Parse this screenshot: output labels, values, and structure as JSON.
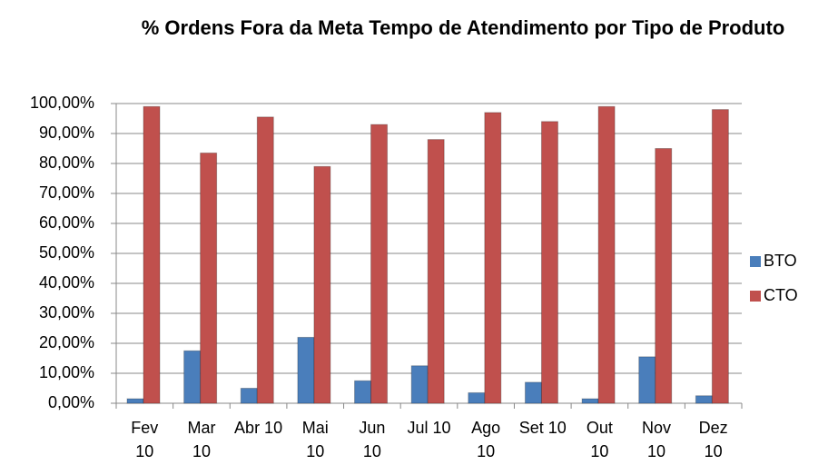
{
  "chart_data": {
    "type": "bar",
    "title": "% Ordens Fora da Meta Tempo de Atendimento por Tipo de Produto",
    "categories": [
      "Fev 10",
      "Mar 10",
      "Abr 10",
      "Mai 10",
      "Jun 10",
      "Jul 10",
      "Ago 10",
      "Set 10",
      "Out 10",
      "Nov 10",
      "Dez 10"
    ],
    "series": [
      {
        "name": "BTO",
        "color": "#4a7ebb",
        "values": [
          1.5,
          17.5,
          5,
          22,
          7.5,
          12.5,
          3.5,
          7,
          1.5,
          15.5,
          2.5
        ]
      },
      {
        "name": "CTO",
        "color": "#c0504d",
        "values": [
          99,
          83.5,
          95.5,
          79,
          93,
          88,
          97,
          94,
          99,
          85,
          98
        ]
      }
    ],
    "ylim": [
      0,
      100
    ],
    "yticks": [
      {
        "value": 0,
        "label": "0,00%"
      },
      {
        "value": 10,
        "label": "10,00%"
      },
      {
        "value": 20,
        "label": "20,00%"
      },
      {
        "value": 30,
        "label": "30,00%"
      },
      {
        "value": 40,
        "label": "40,00%"
      },
      {
        "value": 50,
        "label": "50,00%"
      },
      {
        "value": 60,
        "label": "60,00%"
      },
      {
        "value": 70,
        "label": "70,00%"
      },
      {
        "value": 80,
        "label": "80,00%"
      },
      {
        "value": 90,
        "label": "90,00%"
      },
      {
        "value": 100,
        "label": "100,00%"
      }
    ],
    "grid": true,
    "legend": "right"
  }
}
